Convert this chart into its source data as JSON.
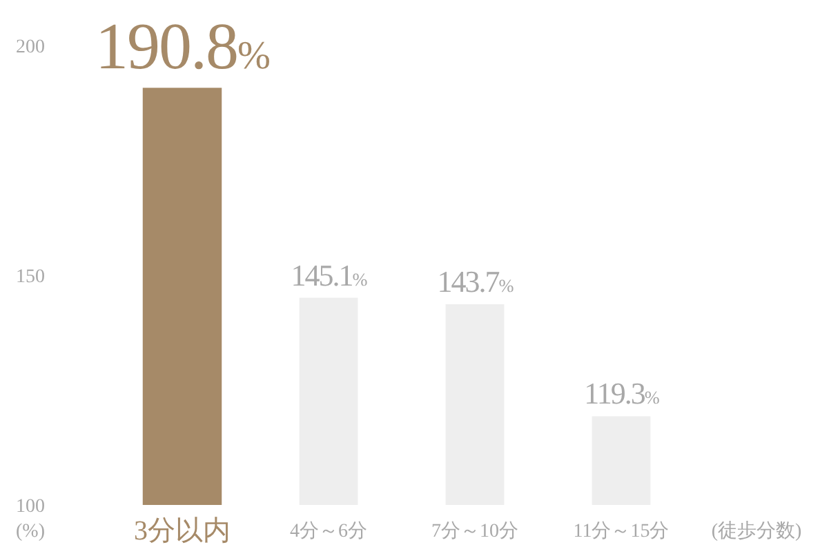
{
  "chart_data": {
    "type": "bar",
    "categories": [
      "3分以内",
      "4分～6分",
      "7分～10分",
      "11分～15分"
    ],
    "values": [
      190.8,
      145.1,
      143.7,
      119.3
    ],
    "colors": [
      "#a68a68",
      "#eeeeee",
      "#eeeeee",
      "#eeeeee"
    ],
    "value_labels": [
      "190.8%",
      "145.1%",
      "143.7%",
      "119.3%"
    ],
    "ylim": [
      100,
      200
    ],
    "yticks": [
      100,
      150,
      200
    ],
    "ylabel": "(%)",
    "xlabel": "(徒歩分数)",
    "grid": false
  }
}
